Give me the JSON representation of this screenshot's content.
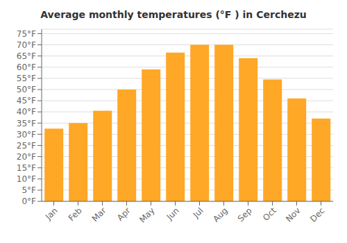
{
  "chart_data": {
    "type": "bar",
    "title": "Average monthly temperatures (°F ) in Cerchezu",
    "categories": [
      "Jan",
      "Feb",
      "Mar",
      "Apr",
      "May",
      "Jun",
      "Jul",
      "Aug",
      "Sep",
      "Oct",
      "Nov",
      "Dec"
    ],
    "values": [
      32.5,
      35,
      40.5,
      50,
      59,
      66.5,
      70,
      70,
      64,
      54.5,
      46,
      37
    ],
    "color": "#FFA726",
    "ylim": [
      0,
      77
    ],
    "yticks": [
      {
        "value": 0,
        "label": "0°F"
      },
      {
        "value": 5,
        "label": "5°F"
      },
      {
        "value": 10,
        "label": "10°F"
      },
      {
        "value": 15,
        "label": "15°F"
      },
      {
        "value": 20,
        "label": "20°F"
      },
      {
        "value": 25,
        "label": "25°F"
      },
      {
        "value": 30,
        "label": "30°F"
      },
      {
        "value": 35,
        "label": "35°F"
      },
      {
        "value": 40,
        "label": "40°F"
      },
      {
        "value": 45,
        "label": "45°F"
      },
      {
        "value": 50,
        "label": "50°F"
      },
      {
        "value": 55,
        "label": "55°F"
      },
      {
        "value": 60,
        "label": "60°F"
      },
      {
        "value": 65,
        "label": "65°F"
      },
      {
        "value": 70,
        "label": "70°F"
      },
      {
        "value": 75,
        "label": "75°F"
      }
    ],
    "grid": true
  }
}
